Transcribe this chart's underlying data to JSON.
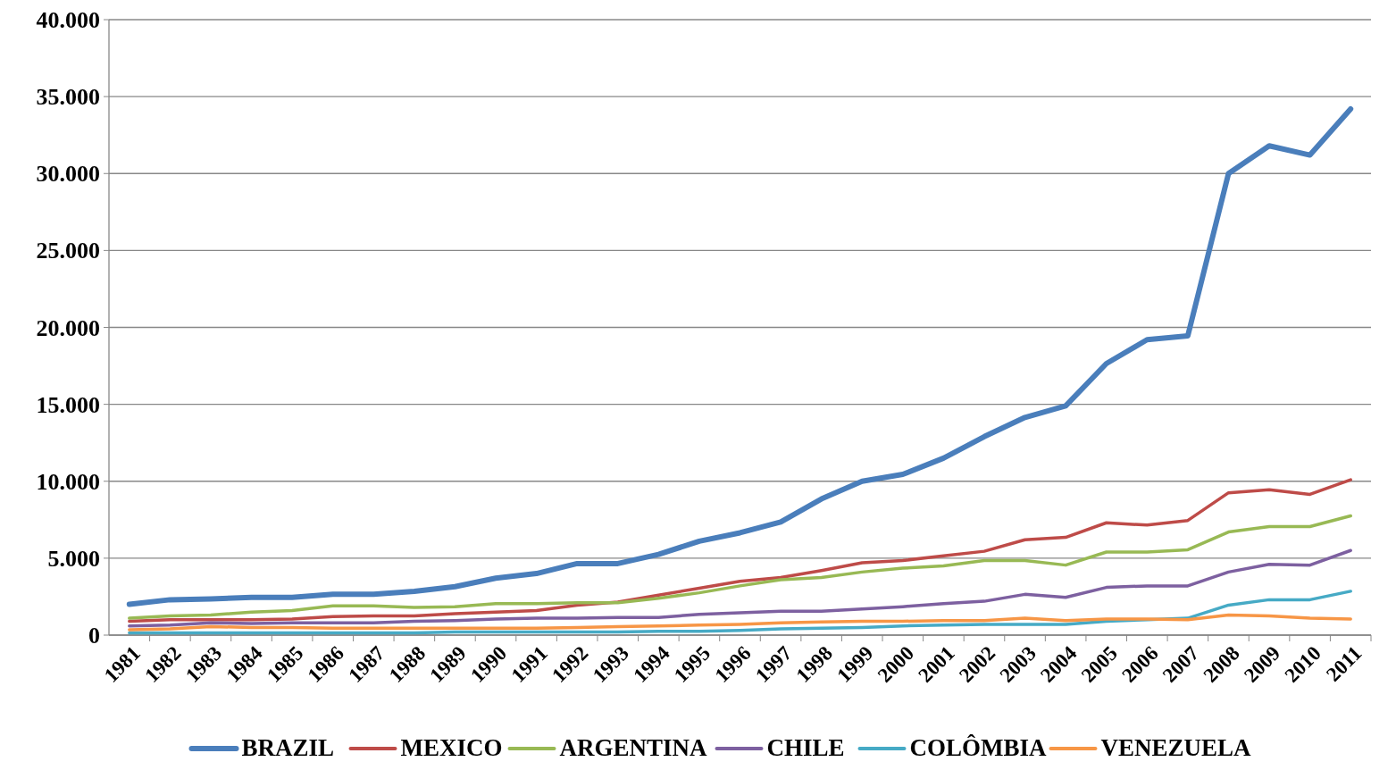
{
  "chart_data": {
    "type": "line",
    "categories": [
      "1981",
      "1982",
      "1983",
      "1984",
      "1985",
      "1986",
      "1987",
      "1988",
      "1989",
      "1990",
      "1991",
      "1992",
      "1993",
      "1994",
      "1995",
      "1996",
      "1997",
      "1998",
      "1999",
      "2000",
      "2001",
      "2002",
      "2003",
      "2004",
      "2005",
      "2006",
      "2007",
      "2008",
      "2009",
      "2010",
      "2011"
    ],
    "series": [
      {
        "name": "BRAZIL",
        "color": "#4a7ebb",
        "values": [
          2000,
          2300,
          2350,
          2450,
          2450,
          2650,
          2650,
          2850,
          3150,
          3700,
          4000,
          4650,
          4650,
          5250,
          6100,
          6650,
          7350,
          8850,
          10000,
          10450,
          11500,
          12900,
          14150,
          14900,
          17650,
          19200,
          19450,
          30000,
          31800,
          31200,
          34200
        ]
      },
      {
        "name": "MEXICO",
        "color": "#be4b48",
        "values": [
          900,
          1000,
          1000,
          1000,
          1050,
          1200,
          1250,
          1250,
          1400,
          1500,
          1600,
          1950,
          2150,
          2600,
          3050,
          3500,
          3750,
          4200,
          4700,
          4850,
          5150,
          5450,
          6200,
          6350,
          7300,
          7150,
          7450,
          9250,
          9450,
          9150,
          10100
        ]
      },
      {
        "name": "ARGENTINA",
        "color": "#98b954",
        "values": [
          1100,
          1250,
          1300,
          1500,
          1600,
          1900,
          1900,
          1800,
          1850,
          2050,
          2050,
          2100,
          2100,
          2400,
          2750,
          3200,
          3600,
          3750,
          4100,
          4350,
          4500,
          4850,
          4850,
          4550,
          5400,
          5400,
          5550,
          6700,
          7050,
          7050,
          7750
        ]
      },
      {
        "name": "CHILE",
        "color": "#7d60a0",
        "values": [
          600,
          650,
          800,
          750,
          800,
          800,
          800,
          900,
          950,
          1050,
          1100,
          1100,
          1150,
          1150,
          1350,
          1450,
          1550,
          1550,
          1700,
          1850,
          2050,
          2200,
          2650,
          2450,
          3100,
          3200,
          3200,
          4100,
          4600,
          4550,
          5500
        ]
      },
      {
        "name": "COLÔMBIA",
        "color": "#46aac5",
        "values": [
          150,
          150,
          150,
          150,
          150,
          150,
          150,
          150,
          200,
          200,
          200,
          200,
          200,
          250,
          250,
          300,
          400,
          450,
          500,
          600,
          650,
          700,
          700,
          700,
          900,
          1000,
          1100,
          1950,
          2300,
          2300,
          2850
        ]
      },
      {
        "name": "VENEZUELA",
        "color": "#f79646",
        "values": [
          350,
          400,
          550,
          500,
          500,
          450,
          450,
          450,
          450,
          450,
          450,
          500,
          550,
          600,
          650,
          700,
          800,
          850,
          900,
          900,
          950,
          950,
          1100,
          950,
          1050,
          1050,
          1000,
          1300,
          1250,
          1100,
          1050
        ]
      }
    ],
    "ylim": [
      0,
      40000
    ],
    "yticks": [
      0,
      {
        "value": 5000,
        "label": "5.000"
      },
      {
        "value": 10000,
        "label": "10.000"
      },
      {
        "value": 15000,
        "label": "15.000"
      },
      {
        "value": 20000,
        "label": "20.000"
      },
      {
        "value": 25000,
        "label": "25.000"
      },
      {
        "value": 30000,
        "label": "30.000"
      },
      {
        "value": 35000,
        "label": "35.000"
      },
      {
        "value": 40000,
        "label": "40.000"
      }
    ],
    "grid": "y",
    "legend": "bottom",
    "marker": "none",
    "line_style": "solid"
  }
}
